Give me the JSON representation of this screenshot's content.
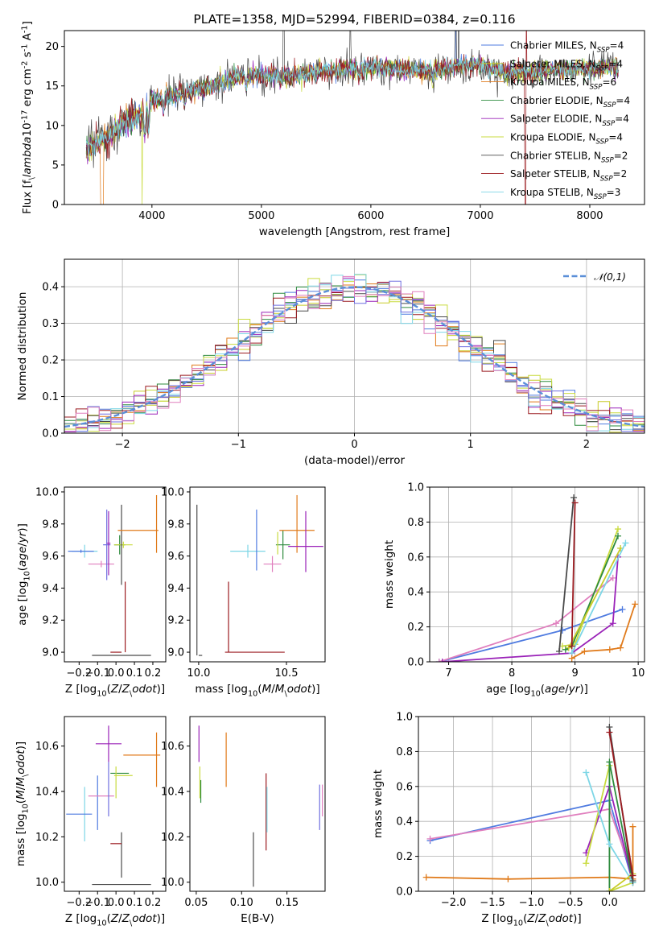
{
  "colors": {
    "cM": "#4f7be0",
    "sM": "#c8cc2a",
    "kM": "#e07a1a",
    "cE": "#2e8b3e",
    "sE": "#9a22b8",
    "kE": "#c9db3f",
    "cS": "#4a4a4a",
    "sS": "#9b1b20",
    "kS": "#7dd6e6",
    "fitViolet": "#6e6ee0",
    "fitPink": "#e07fbe",
    "normal": "#5b8fd8"
  },
  "chart_data": [
    {
      "id": "spectrum",
      "type": "line",
      "title": "PLATE=1358, MJD=52994, FIBERID=0384, z=0.116",
      "xlabel": "wavelength [Angstrom, rest frame]",
      "ylabel": "Flux [f$_\\lambda$10$^{-17}$ erg cm$^{-2}$ s$^{-1}$ A$^{-1}$]",
      "xlim": [
        3200,
        8500
      ],
      "ylim": [
        0,
        22
      ],
      "xticks": [
        4000,
        5000,
        6000,
        7000,
        8000
      ],
      "yticks": [
        0,
        5,
        10,
        15,
        20
      ],
      "envelope": {
        "x": [
          3400,
          3500,
          3600,
          3700,
          3800,
          3900,
          4000,
          4200,
          4400,
          4600,
          4800,
          5000,
          5200,
          5400,
          5600,
          5800,
          6000,
          6200,
          6400,
          6600,
          6800,
          7000,
          7200,
          7400,
          7600,
          7800,
          8000,
          8200,
          8250
        ],
        "y": [
          7.2,
          7.8,
          8.6,
          9.8,
          10.9,
          11.3,
          13.2,
          14.0,
          14.5,
          15.2,
          16.2,
          16.3,
          16.5,
          16.5,
          16.9,
          17.2,
          17.4,
          17.2,
          16.9,
          17.0,
          17.6,
          17.6,
          16.8,
          16.7,
          16.9,
          17.3,
          17.3,
          17.4,
          17.3
        ]
      },
      "legend_placement": "upper right",
      "series": [
        {
          "label": "Chabrier MILES, N$_{SSP}$=4",
          "color": "cM"
        },
        {
          "label": "Salpeter MILES, N$_{SSP}$=4",
          "color": "sM"
        },
        {
          "label": "Kroupa MILES, N$_{SSP}$=6",
          "color": "kM"
        },
        {
          "label": "Chabrier ELODIE, N$_{SSP}$=4",
          "color": "cE"
        },
        {
          "label": "Salpeter ELODIE, N$_{SSP}$=4",
          "color": "sE"
        },
        {
          "label": "Kroupa ELODIE, N$_{SSP}$=4",
          "color": "kE"
        },
        {
          "label": "Chabrier STELIB, N$_{SSP}$=2",
          "color": "cS"
        },
        {
          "label": "Salpeter STELIB, N$_{SSP}$=2",
          "color": "sS"
        },
        {
          "label": "Kroupa STELIB, N$_{SSP}$=3",
          "color": "kS"
        }
      ],
      "grid": false
    },
    {
      "id": "residuals",
      "type": "histogram",
      "xlabel": "(data-model)/error",
      "ylabel": "Normed distribution",
      "xlim": [
        -2.5,
        2.5
      ],
      "ylim": [
        0,
        0.475
      ],
      "xticks": [
        -2,
        -1,
        0,
        1,
        2
      ],
      "yticks": [
        0.0,
        0.1,
        0.2,
        0.3,
        0.4
      ],
      "bin_width": 0.1,
      "bins": 50,
      "legend": "$\\mathcal{N}(0,1)$",
      "legend_placement": "upper right",
      "series_colors": [
        "cM",
        "sM",
        "kM",
        "cE",
        "sE",
        "kE",
        "cS",
        "sS",
        "kS",
        "fitViolet",
        "fitPink"
      ],
      "grid": true
    },
    {
      "id": "age-Z",
      "type": "errorbar",
      "xlabel": "Z [log$_{10}$($Z$/$Z_\\odot$)]",
      "ylabel": "age  [log$_{10}$($age$/$yr$)]",
      "xlim": [
        -0.28,
        0.27
      ],
      "ylim": [
        8.94,
        10.03
      ],
      "xticks": [
        -0.2,
        -0.1,
        0.0,
        0.1,
        0.2
      ],
      "yticks": [
        9.0,
        9.2,
        9.4,
        9.6,
        9.8,
        10.0
      ],
      "points": [
        {
          "c": "kS",
          "x": -0.17,
          "xe": 0.07,
          "y": 9.63,
          "ye": 0.04
        },
        {
          "c": "cM",
          "x": -0.19,
          "xe": 0.07,
          "y": 9.63,
          "ye": 0.01
        },
        {
          "c": "fitPink",
          "x": -0.08,
          "xe": 0.07,
          "y": 9.55,
          "ye": 0.02
        },
        {
          "c": "fitViolet",
          "x": -0.05,
          "xe": 0.02,
          "y": 9.67,
          "ye": 0.22
        },
        {
          "c": "sE",
          "x": -0.04,
          "xe": 0.01,
          "y": 9.68,
          "ye": 0.2
        },
        {
          "c": "cE",
          "x": 0.02,
          "xe": 0.03,
          "y": 9.67,
          "ye": 0.06
        },
        {
          "c": "kE",
          "x": 0.04,
          "xe": 0.05,
          "y": 9.67,
          "ye": 0.02
        },
        {
          "c": "cS",
          "x": 0.03,
          "xe": 0.16,
          "y": 8.98,
          "ye": 0.0
        },
        {
          "c": "sS",
          "x": 0.0,
          "xe": 0.03,
          "y": 9.0,
          "ye": 0.0
        },
        {
          "c": "sS",
          "x": 0.05,
          "xe": 0.0,
          "y": 9.22,
          "ye": 0.22
        },
        {
          "c": "cS",
          "x": 0.03,
          "xe": 0.0,
          "y": 9.67,
          "ye": 0.25
        },
        {
          "c": "kM",
          "x": 0.22,
          "xe": 0.0,
          "y": 9.8,
          "ye": 0.18
        },
        {
          "c": "kM",
          "x": 0.12,
          "xe": 0.11,
          "y": 9.76,
          "ye": 0.0
        }
      ]
    },
    {
      "id": "age-mass",
      "type": "errorbar",
      "xlabel": "mass [log$_{10}$($M$/$M_\\odot$)]",
      "xlim": [
        9.95,
        10.72
      ],
      "ylim": [
        8.94,
        10.03
      ],
      "xticks": [
        10.0,
        10.5
      ],
      "yticks": [
        9.0,
        9.2,
        9.4,
        9.6,
        9.8,
        10.0
      ],
      "points": [
        {
          "c": "cS",
          "x": 9.99,
          "xe": 0.0,
          "y": 9.45,
          "ye": 0.47
        },
        {
          "c": "cS",
          "x": 10.01,
          "xe": 0.01,
          "y": 8.98,
          "ye": 0.0
        },
        {
          "c": "sS",
          "x": 10.17,
          "xe": 0.0,
          "y": 9.22,
          "ye": 0.22
        },
        {
          "c": "sS",
          "x": 10.32,
          "xe": 0.17,
          "y": 9.0,
          "ye": 0.0
        },
        {
          "c": "kS",
          "x": 10.28,
          "xe": 0.1,
          "y": 9.63,
          "ye": 0.04
        },
        {
          "c": "cM",
          "x": 10.33,
          "xe": 0.0,
          "y": 9.7,
          "ye": 0.19
        },
        {
          "c": "fitPink",
          "x": 10.42,
          "xe": 0.05,
          "y": 9.55,
          "ye": 0.05
        },
        {
          "c": "cE",
          "x": 10.48,
          "xe": 0.04,
          "y": 9.67,
          "ye": 0.09
        },
        {
          "c": "kE",
          "x": 10.45,
          "xe": 0.0,
          "y": 9.68,
          "ye": 0.07
        },
        {
          "c": "kM",
          "x": 10.56,
          "xe": 0.1,
          "y": 9.76,
          "ye": 0.0
        },
        {
          "c": "kM",
          "x": 10.56,
          "xe": 0.0,
          "y": 9.8,
          "ye": 0.18
        },
        {
          "c": "sE",
          "x": 10.61,
          "xe": 0.1,
          "y": 9.66,
          "ye": 0.0
        },
        {
          "c": "sE",
          "x": 10.61,
          "xe": 0.0,
          "y": 9.69,
          "ye": 0.19
        }
      ]
    },
    {
      "id": "weight-age",
      "type": "line",
      "xlabel": "age  [log$_{10}$($age$/$yr$)]",
      "ylabel": "mass weight",
      "xlim": [
        6.7,
        10.1
      ],
      "ylim": [
        0,
        1.0
      ],
      "xticks": [
        7,
        8,
        9,
        10
      ],
      "yticks": [
        0.0,
        0.2,
        0.4,
        0.6,
        0.8,
        1.0
      ],
      "grid": true,
      "series": [
        {
          "c": "cM",
          "x": [
            6.85,
            8.8,
            9.75
          ],
          "y": [
            0.0,
            0.18,
            0.3
          ]
        },
        {
          "c": "fitPink",
          "x": [
            6.85,
            8.7,
            9.6
          ],
          "y": [
            0.0,
            0.22,
            0.48
          ]
        },
        {
          "c": "sE",
          "x": [
            6.9,
            8.95,
            9.6,
            9.68
          ],
          "y": [
            0.0,
            0.05,
            0.22,
            0.6
          ]
        },
        {
          "c": "kE",
          "x": [
            8.8,
            9.0,
            9.68
          ],
          "y": [
            0.09,
            0.1,
            0.76
          ]
        },
        {
          "c": "cE",
          "x": [
            8.85,
            8.95,
            9.68
          ],
          "y": [
            0.07,
            0.09,
            0.72
          ]
        },
        {
          "c": "sM",
          "x": [
            8.9,
            9.72
          ],
          "y": [
            0.08,
            0.65
          ]
        },
        {
          "c": "kS",
          "x": [
            8.95,
            9.8
          ],
          "y": [
            0.05,
            0.68
          ]
        },
        {
          "c": "kM",
          "x": [
            8.95,
            9.15,
            9.55,
            9.72,
            9.95
          ],
          "y": [
            0.02,
            0.06,
            0.07,
            0.08,
            0.33
          ]
        },
        {
          "c": "cS",
          "x": [
            8.75,
            8.98
          ],
          "y": [
            0.06,
            0.94
          ]
        },
        {
          "c": "sS",
          "x": [
            8.95,
            9.0
          ],
          "y": [
            0.09,
            0.91
          ]
        }
      ]
    },
    {
      "id": "mass-Z",
      "type": "errorbar",
      "xlabel": "Z [log$_{10}$($Z$/$Z_\\odot$)]",
      "ylabel": "mass [log$_{10}$($M$/$M_\\odot$)]",
      "xlim": [
        -0.28,
        0.27
      ],
      "ylim": [
        9.96,
        10.73
      ],
      "xticks": [
        -0.2,
        -0.1,
        0.0,
        0.1,
        0.2
      ],
      "yticks": [
        10.0,
        10.2,
        10.4,
        10.6
      ],
      "points": [
        {
          "c": "kS",
          "x": -0.17,
          "xe": 0.0,
          "y": 10.3,
          "ye": 0.12
        },
        {
          "c": "cM",
          "x": -0.2,
          "xe": 0.07,
          "y": 10.3,
          "ye": 0.0
        },
        {
          "c": "cM",
          "x": -0.1,
          "xe": 0.0,
          "y": 10.35,
          "ye": 0.12
        },
        {
          "c": "fitPink",
          "x": -0.08,
          "xe": 0.07,
          "y": 10.38,
          "ye": 0.0
        },
        {
          "c": "sE",
          "x": -0.04,
          "xe": 0.07,
          "y": 10.61,
          "ye": 0.0
        },
        {
          "c": "sE",
          "x": -0.04,
          "xe": 0.0,
          "y": 10.61,
          "ye": 0.08
        },
        {
          "c": "fitViolet",
          "x": -0.04,
          "xe": 0.0,
          "y": 10.41,
          "ye": 0.12
        },
        {
          "c": "cE",
          "x": 0.02,
          "xe": 0.05,
          "y": 10.48,
          "ye": 0.0
        },
        {
          "c": "kE",
          "x": 0.04,
          "xe": 0.05,
          "y": 10.47,
          "ye": 0.0
        },
        {
          "c": "kE",
          "x": 0.0,
          "xe": 0.0,
          "y": 10.44,
          "ye": 0.07
        },
        {
          "c": "cS",
          "x": 0.03,
          "xe": 0.16,
          "y": 9.99,
          "ye": 0.0
        },
        {
          "c": "cS",
          "x": 0.03,
          "xe": 0.0,
          "y": 10.12,
          "ye": 0.1
        },
        {
          "c": "sS",
          "x": 0.0,
          "xe": 0.03,
          "y": 10.17,
          "ye": 0.0
        },
        {
          "c": "kM",
          "x": 0.22,
          "xe": 0.0,
          "y": 10.54,
          "ye": 0.12
        },
        {
          "c": "kM",
          "x": 0.14,
          "xe": 0.1,
          "y": 10.56,
          "ye": 0.0
        }
      ]
    },
    {
      "id": "mass-ebv",
      "type": "errorbar",
      "xlabel": "E(B-V)",
      "xlim": [
        0.043,
        0.192
      ],
      "ylim": [
        9.96,
        10.73
      ],
      "xticks": [
        0.05,
        0.1,
        0.15
      ],
      "yticks": [
        10.0,
        10.2,
        10.4,
        10.6
      ],
      "points": [
        {
          "c": "sE",
          "x": 0.053,
          "xe": 0.0,
          "y": 10.61,
          "ye": 0.08
        },
        {
          "c": "kE",
          "x": 0.054,
          "xe": 0.0,
          "y": 10.44,
          "ye": 0.07
        },
        {
          "c": "cE",
          "x": 0.055,
          "xe": 0.0,
          "y": 10.4,
          "ye": 0.05
        },
        {
          "c": "kM",
          "x": 0.083,
          "xe": 0.0,
          "y": 10.54,
          "ye": 0.12
        },
        {
          "c": "cS",
          "x": 0.113,
          "xe": 0.0,
          "y": 10.1,
          "ye": 0.12
        },
        {
          "c": "sS",
          "x": 0.127,
          "xe": 0.0,
          "y": 10.31,
          "ye": 0.17
        },
        {
          "c": "kS",
          "x": 0.128,
          "xe": 0.0,
          "y": 10.32,
          "ye": 0.1
        },
        {
          "c": "fitViolet",
          "x": 0.186,
          "xe": 0.0,
          "y": 10.33,
          "ye": 0.1
        },
        {
          "c": "fitPink",
          "x": 0.189,
          "xe": 0.0,
          "y": 10.36,
          "ye": 0.07
        }
      ]
    },
    {
      "id": "weight-Z",
      "type": "line",
      "xlabel": "Z [log$_{10}$($Z$/$Z_\\odot$)]",
      "ylabel": "mass weight",
      "xlim": [
        -2.45,
        0.45
      ],
      "ylim": [
        0,
        1.0
      ],
      "xticks": [
        -2.0,
        -1.5,
        -1.0,
        -0.5,
        0.0
      ],
      "yticks": [
        0.0,
        0.2,
        0.4,
        0.6,
        0.8,
        1.0
      ],
      "grid": true,
      "series": [
        {
          "c": "cM",
          "x": [
            -2.3,
            0.0,
            0.3
          ],
          "y": [
            0.29,
            0.52,
            0.05
          ]
        },
        {
          "c": "fitPink",
          "x": [
            -2.3,
            0.0,
            0.3
          ],
          "y": [
            0.3,
            0.47,
            0.09
          ]
        },
        {
          "c": "kM",
          "x": [
            -2.35,
            -1.3,
            0.0,
            0.3,
            0.3
          ],
          "y": [
            0.08,
            0.07,
            0.08,
            0.07,
            0.37
          ]
        },
        {
          "c": "sE",
          "x": [
            -0.3,
            0.0,
            0.3
          ],
          "y": [
            0.22,
            0.6,
            0.05
          ]
        },
        {
          "c": "kE",
          "x": [
            -0.3,
            0.0,
            0.0,
            0.3
          ],
          "y": [
            0.16,
            0.72,
            0.0,
            0.05
          ]
        },
        {
          "c": "cE",
          "x": [
            0.0,
            0.0,
            0.3
          ],
          "y": [
            0.0,
            0.74,
            0.05
          ]
        },
        {
          "c": "kS",
          "x": [
            -0.3,
            0.0,
            0.3
          ],
          "y": [
            0.68,
            0.27,
            0.05
          ]
        },
        {
          "c": "sM",
          "x": [
            0.0,
            0.3
          ],
          "y": [
            0.0,
            0.1
          ]
        },
        {
          "c": "cS",
          "x": [
            0.0,
            0.3
          ],
          "y": [
            0.94,
            0.06
          ]
        },
        {
          "c": "sS",
          "x": [
            0.0,
            0.3
          ],
          "y": [
            0.91,
            0.09
          ]
        }
      ]
    }
  ]
}
